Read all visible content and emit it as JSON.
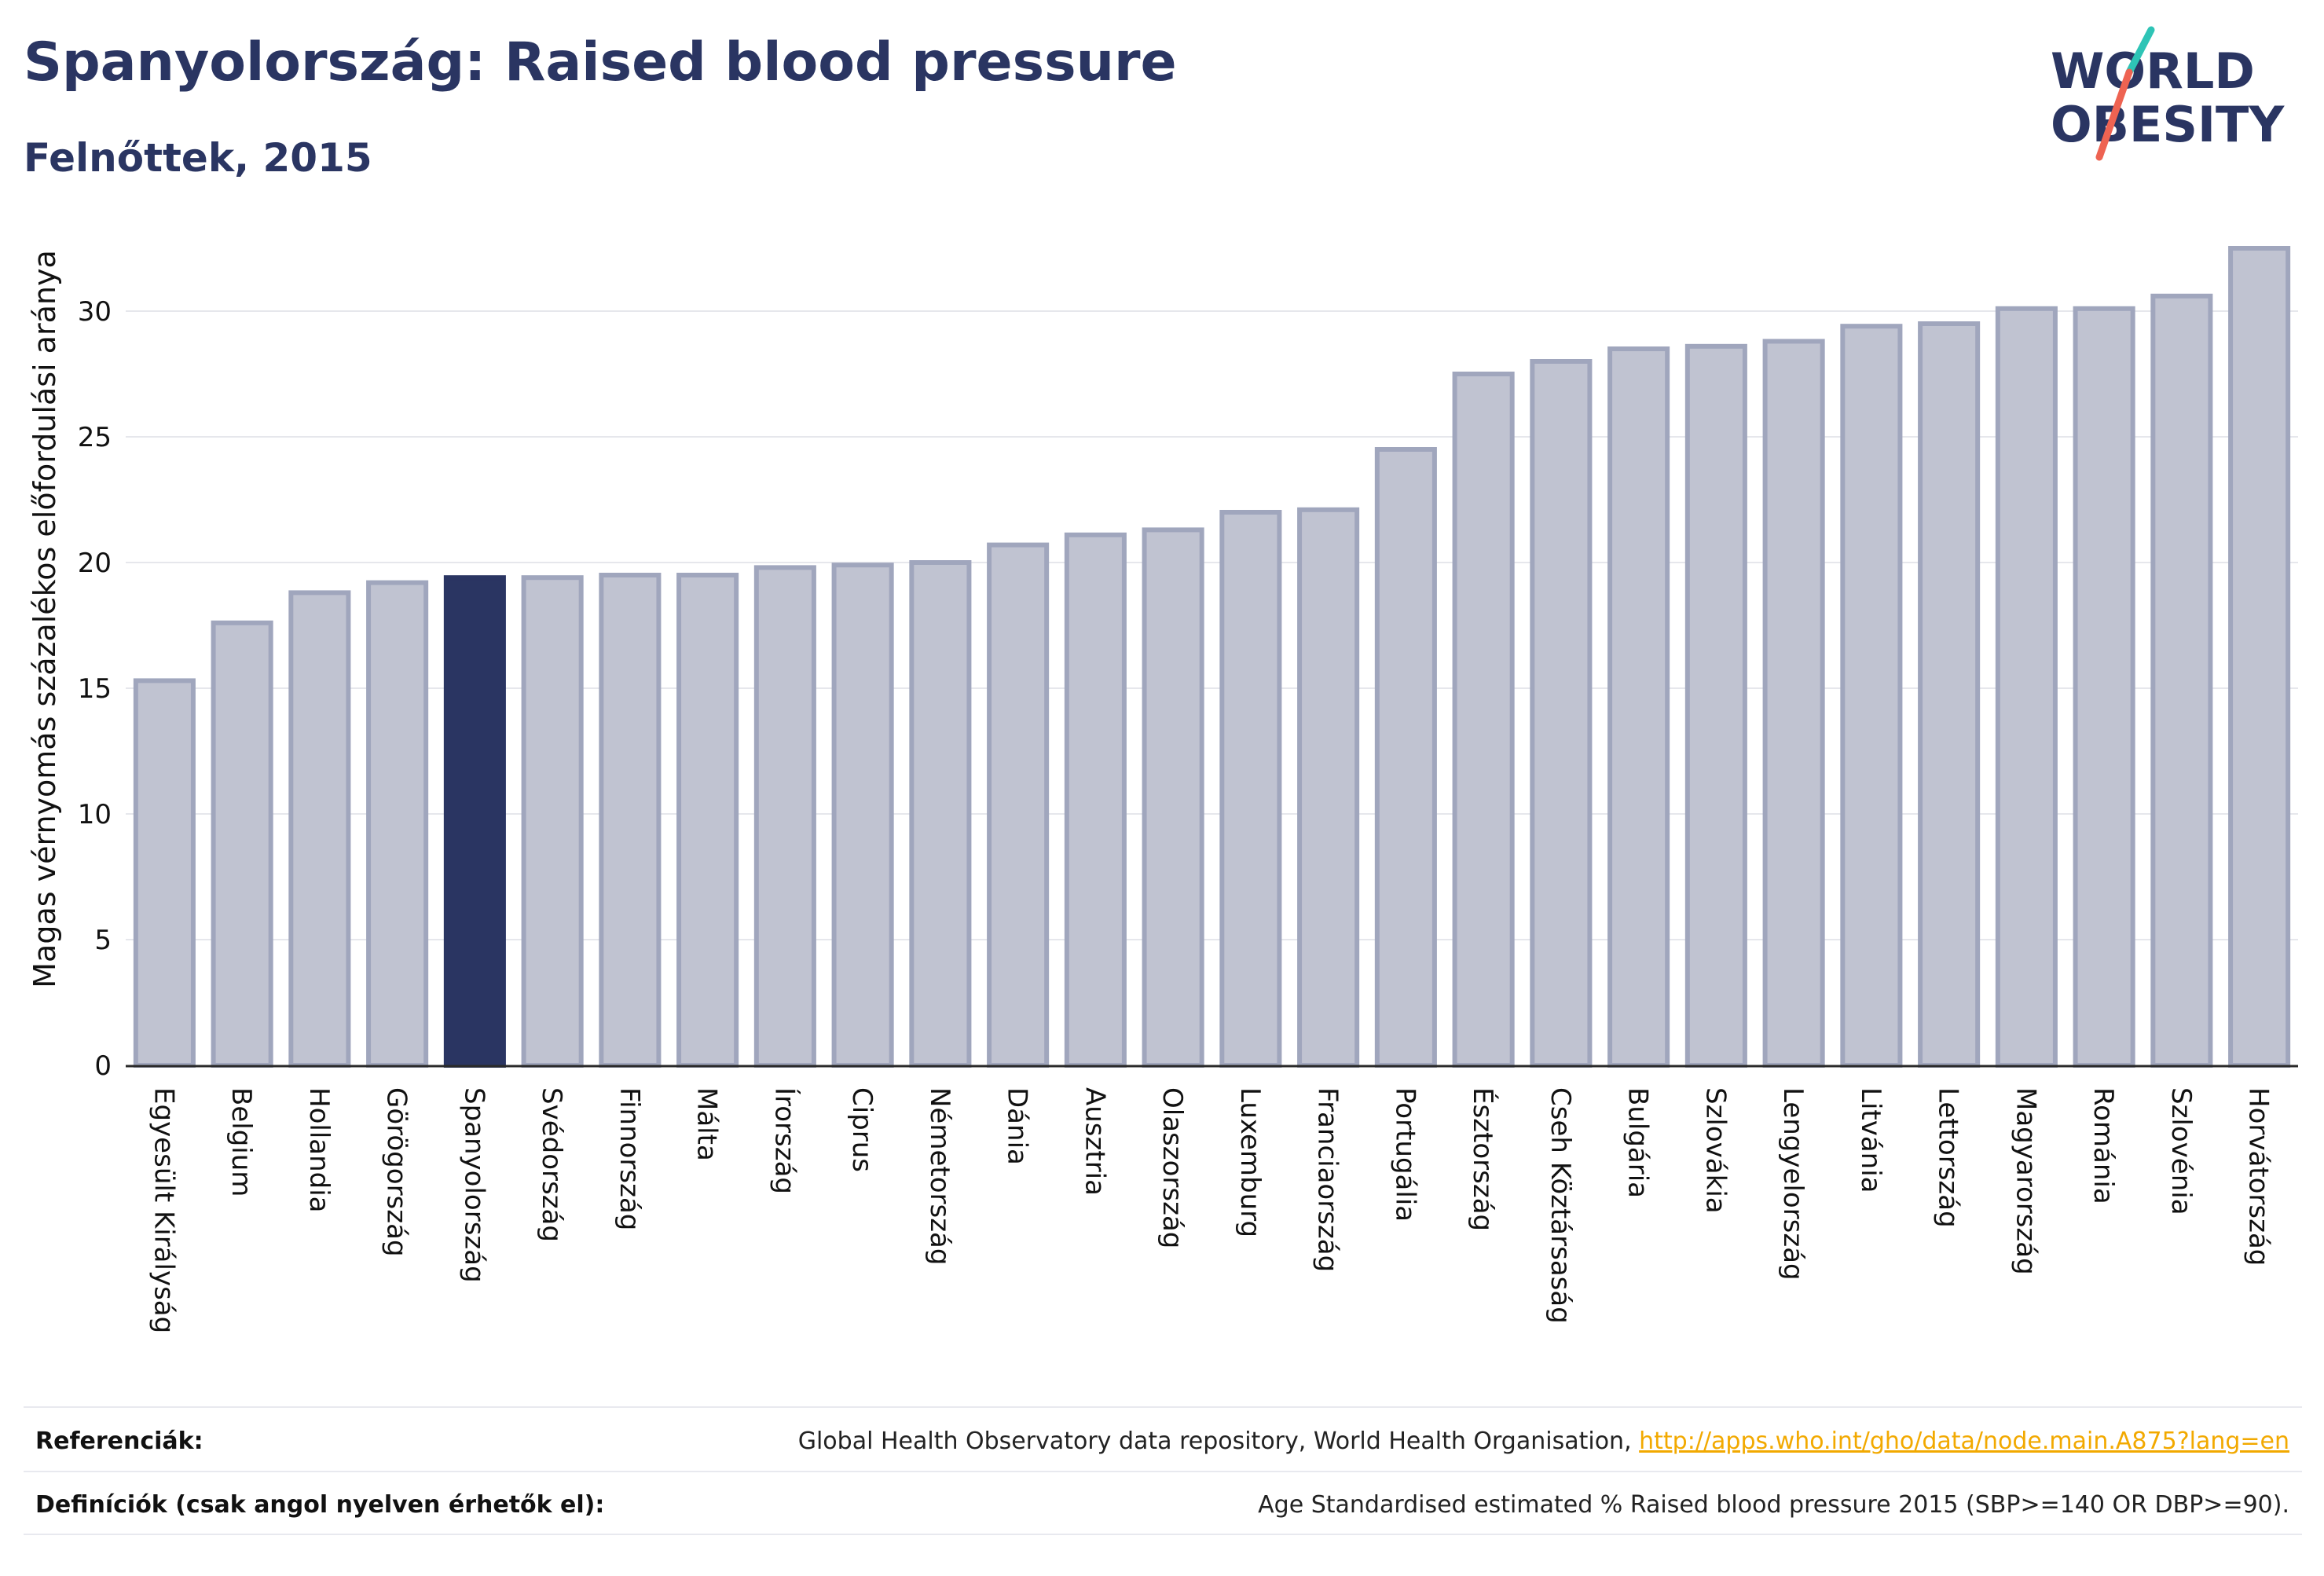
{
  "header": {
    "title": "Spanyolország: Raised blood pressure",
    "subtitle": "Felnőttek, 2015"
  },
  "logo": {
    "line1": "WORLD",
    "line2": "OBESITY",
    "accent_teal": "#2ec4b6",
    "accent_red": "#ee6352"
  },
  "colors": {
    "bar": "#c0c3d1",
    "bar_stroke": "#a0a6bd",
    "highlight": "#2a3562",
    "grid": "#e6e7ec"
  },
  "chart_data": {
    "type": "bar",
    "ylabel": "Magas vérnyomás százalékos előfordulási aránya",
    "ylim": [
      0,
      33
    ],
    "yticks": [
      0,
      5,
      10,
      15,
      20,
      25,
      30
    ],
    "grid": true,
    "highlight": "Spanyolország",
    "categories": [
      "Egyesült Királyság",
      "Belgium",
      "Hollandia",
      "Görögország",
      "Spanyolország",
      "Svédország",
      "Finnország",
      "Málta",
      "Írország",
      "Ciprus",
      "Németország",
      "Dánia",
      "Ausztria",
      "Olaszország",
      "Luxemburg",
      "Franciaország",
      "Portugália",
      "Észtország",
      "Cseh Köztársaság",
      "Bulgária",
      "Szlovákia",
      "Lengyelország",
      "Litvánia",
      "Lettország",
      "Magyarország",
      "Románia",
      "Szlovénia",
      "Horvátország"
    ],
    "values": [
      15.3,
      17.6,
      18.8,
      19.2,
      19.4,
      19.4,
      19.5,
      19.5,
      19.8,
      19.9,
      20.0,
      20.7,
      21.1,
      21.3,
      22.0,
      22.1,
      24.5,
      27.5,
      28.0,
      28.5,
      28.6,
      28.8,
      29.4,
      29.5,
      30.1,
      30.1,
      30.6,
      32.5
    ]
  },
  "footer": {
    "references_label": "Referenciák:",
    "references_text": "Global Health Observatory data repository, World Health Organisation, ",
    "references_link": "http://apps.who.int/gho/data/node.main.A875?lang=en",
    "definitions_label": "Definíciók (csak angol nyelven érhetők el):",
    "definitions_text": "Age Standardised estimated % Raised blood pressure 2015 (SBP>=140 OR DBP>=90)."
  }
}
